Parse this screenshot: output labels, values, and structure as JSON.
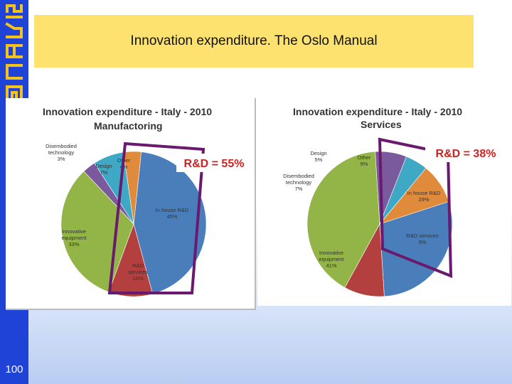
{
  "sidebar": {
    "logo_text": "CERIS",
    "page_number": "100"
  },
  "slide": {
    "title": "Innovation expenditure. The Oslo Manual"
  },
  "charts": [
    {
      "title_line1": "Innovation expenditure - Italy - 2010",
      "title_line2": "Manufactoring",
      "highlight": "R&D = 55%"
    },
    {
      "title_line1": "Innovation expenditure - Italy - 2010",
      "title_line2": "Services",
      "highlight": "R&D = 38%"
    }
  ],
  "chart_data": [
    {
      "type": "pie",
      "title": "Innovation expenditure - Italy - 2010 Manufactoring",
      "categories": [
        "In house R&D",
        "R&D services",
        "Innovative equipment",
        "Disembodied technology",
        "Design",
        "Other"
      ],
      "values": [
        45,
        10,
        33,
        3,
        7,
        4
      ],
      "colors": [
        "#4a7ebb",
        "#b33f3f",
        "#93b548",
        "#7a5a9c",
        "#3fa8c4",
        "#e08a3c"
      ],
      "labels": [
        "In house R&D\n45%",
        "R&D\nservices\n10%",
        "Innovative\nequipment\n33%",
        "Disembodied\ntechnology\n3%",
        "Design\n7%",
        "Other\n4%"
      ]
    },
    {
      "type": "pie",
      "title": "Innovation expenditure - Italy - 2010 Services",
      "categories": [
        "In house R&D",
        "R&D services",
        "Innovative equipment",
        "Disembodied technology",
        "Design",
        "Other"
      ],
      "values": [
        29,
        9,
        41,
        7,
        5,
        9
      ],
      "colors": [
        "#4a7ebb",
        "#b33f3f",
        "#93b548",
        "#7a5a9c",
        "#3fa8c4",
        "#e08a3c"
      ],
      "labels": [
        "In house R&D\n29%",
        "R&D services\n9%",
        "Innovative\nequipment\n41%",
        "Disembodied\ntechnology\n7%",
        "Design\n5%",
        "Other\n9%"
      ]
    }
  ]
}
